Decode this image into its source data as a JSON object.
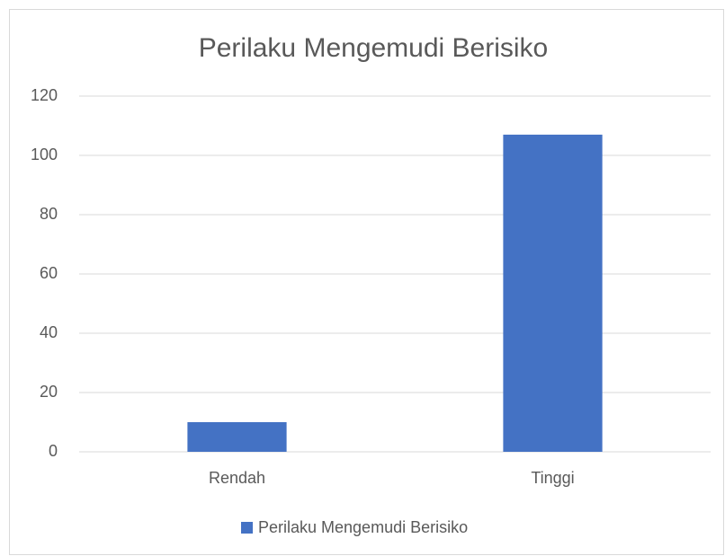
{
  "chart_data": {
    "type": "bar",
    "title": "Perilaku Mengemudi Berisiko",
    "categories": [
      "Rendah",
      "Tinggi"
    ],
    "series": [
      {
        "name": "Perilaku Mengemudi Berisiko",
        "color": "#4472c4",
        "values": [
          10,
          107
        ]
      }
    ],
    "ylim": [
      0,
      120
    ],
    "yticks": [
      0,
      20,
      40,
      60,
      80,
      100,
      120
    ],
    "grid": true,
    "legend": "bottom"
  }
}
